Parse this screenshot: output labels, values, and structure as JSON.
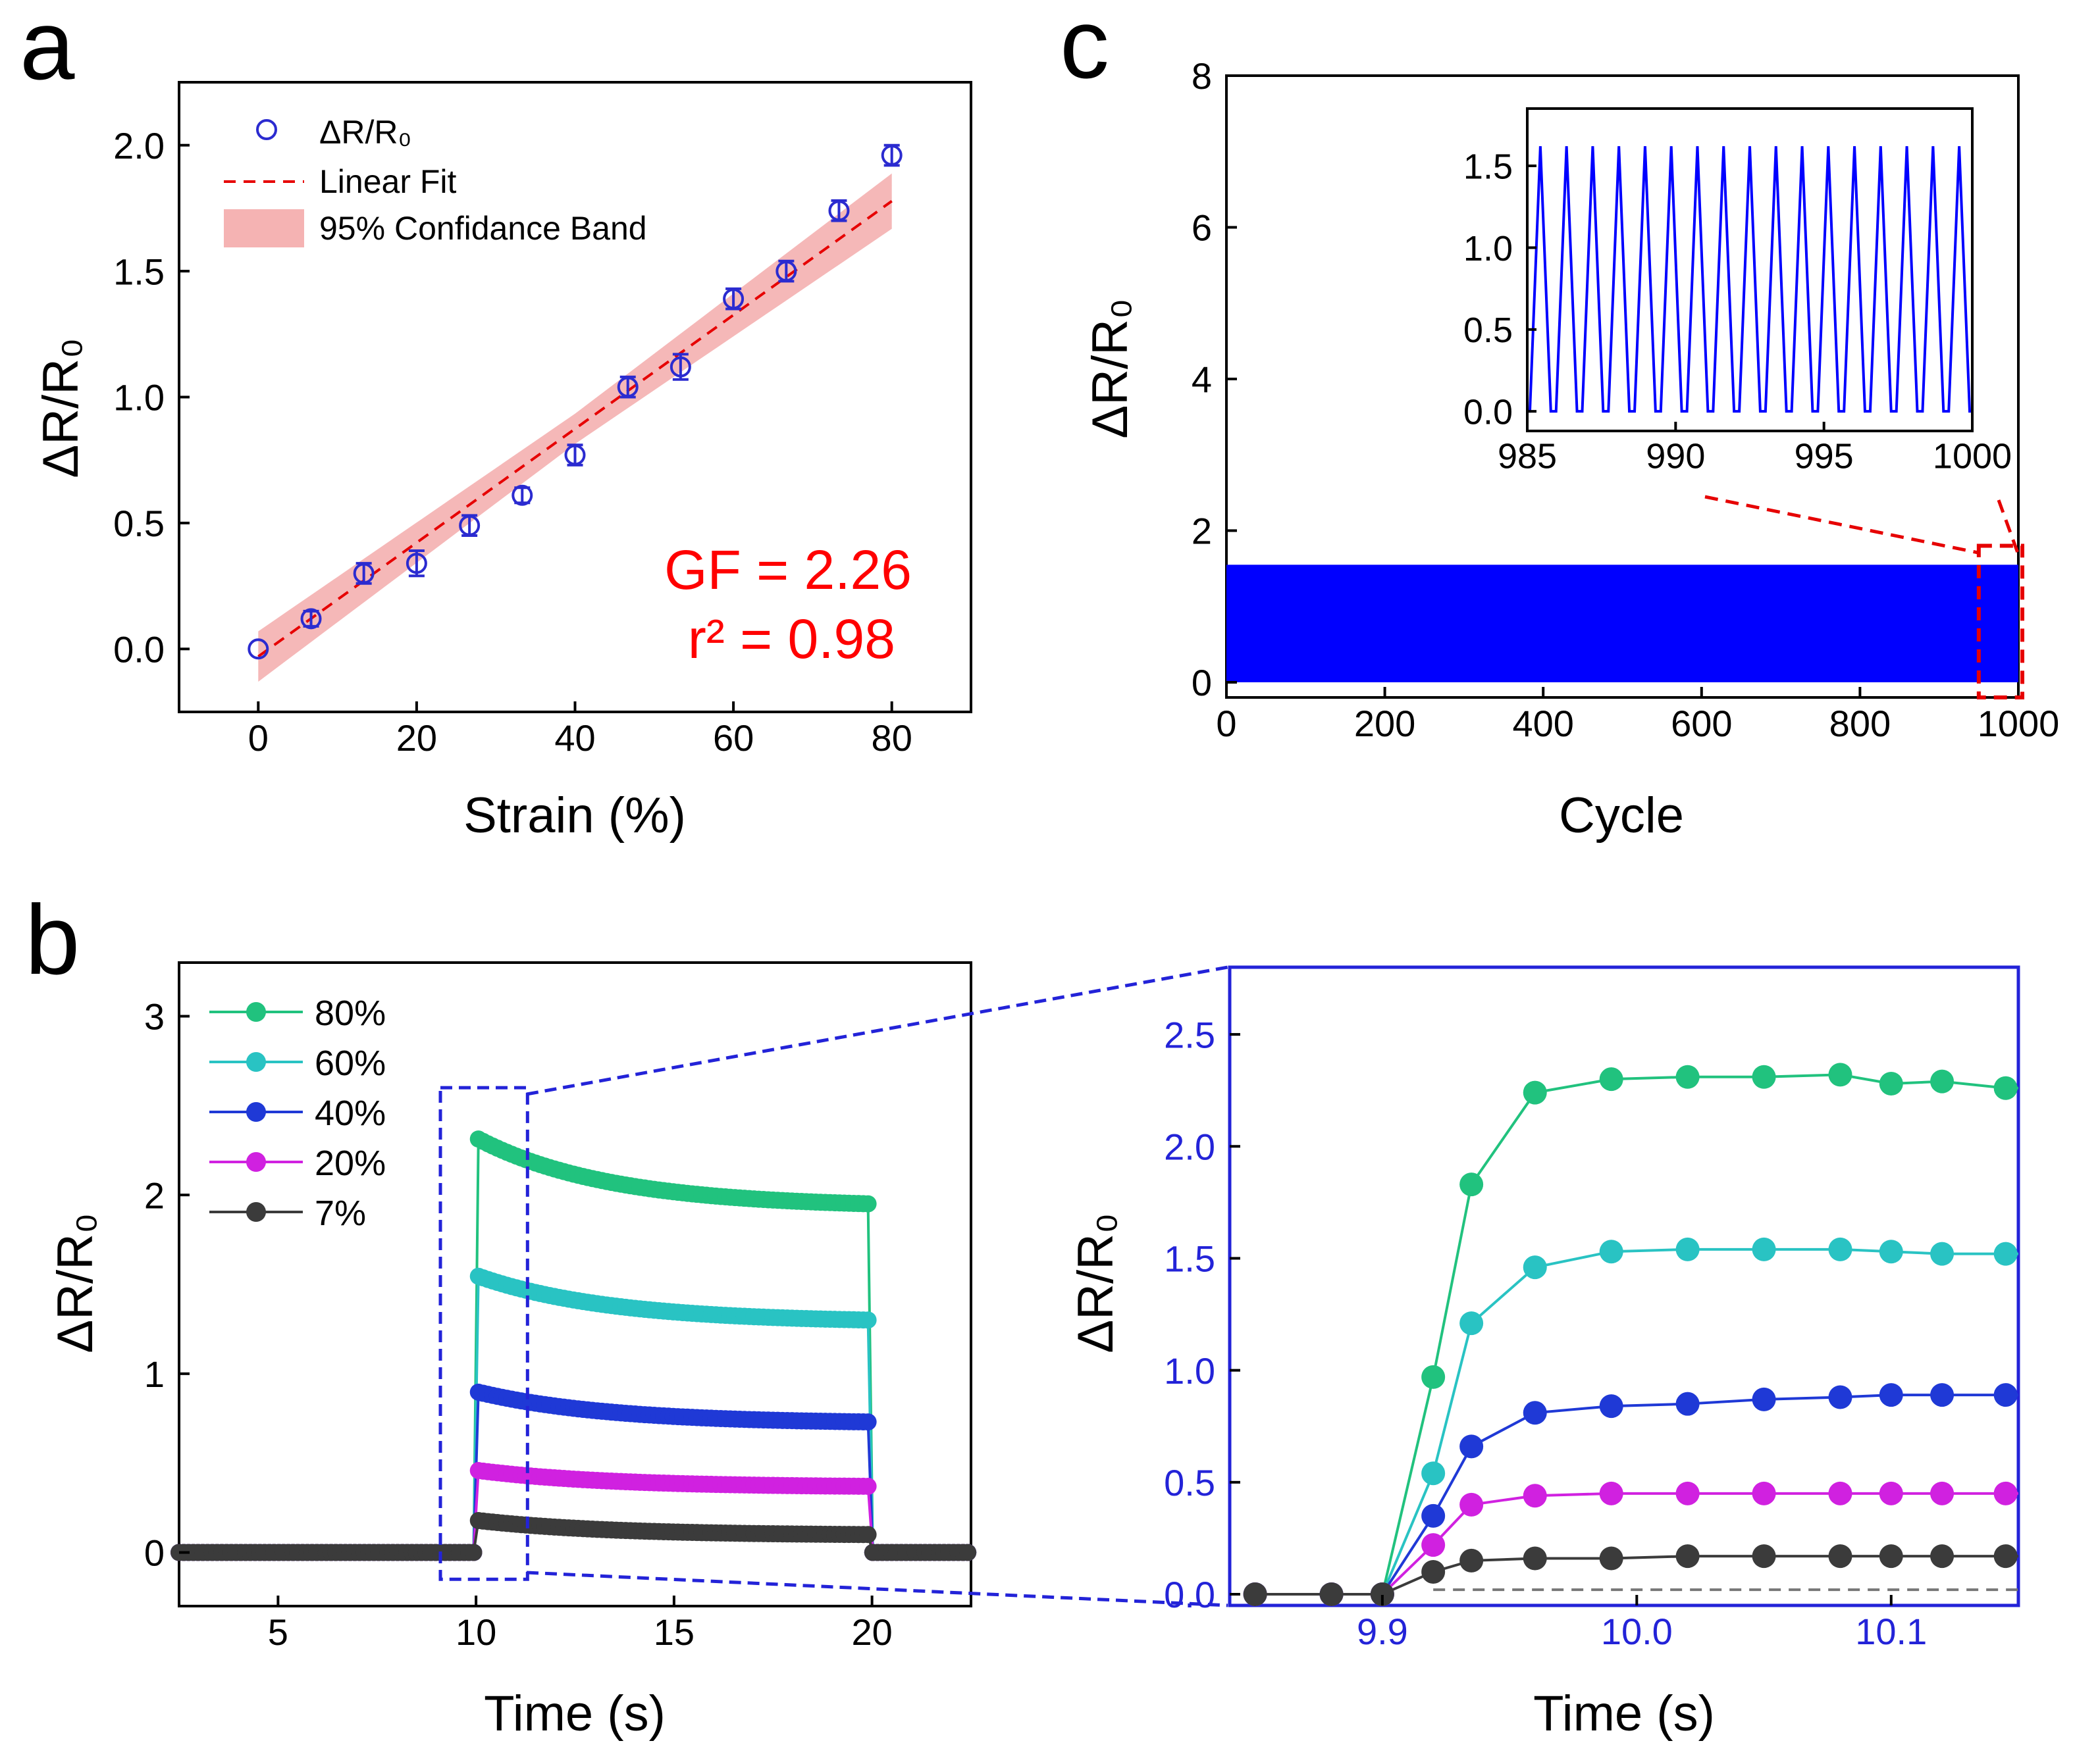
{
  "panel_labels": {
    "a": "a",
    "b": "b",
    "c": "c"
  },
  "colors": {
    "data_point": "#2b2bd0",
    "fit": "#e60000",
    "band": "#f2a0a0",
    "gf_text": "#ff0000",
    "cycle_line": "#0000ff",
    "zoom_frame": "#2323d8",
    "s80": "#21c27e",
    "s60": "#29c3c3",
    "s40": "#1f39d6",
    "s20": "#d021e0",
    "s7": "#3b3b3b"
  },
  "chart_data": [
    {
      "id": "a",
      "type": "scatter",
      "title": "",
      "xlabel": "Strain (%)",
      "ylabel": "ΔR/R₀",
      "xlim": [
        -10,
        90
      ],
      "ylim": [
        -0.25,
        2.25
      ],
      "xticks": [
        "0",
        "20",
        "40",
        "60",
        "80"
      ],
      "yticks": [
        "0.0",
        "0.5",
        "1.0",
        "1.5",
        "2.0"
      ],
      "legend": {
        "position": "top-left",
        "entries": [
          "ΔR/R₀",
          "Linear Fit",
          "95% Confidance Band"
        ]
      },
      "x": [
        0,
        6.67,
        13.33,
        20,
        26.67,
        33.33,
        40,
        46.67,
        53.33,
        60,
        66.67,
        73.33,
        80
      ],
      "y": [
        0.0,
        0.12,
        0.3,
        0.34,
        0.49,
        0.61,
        0.77,
        1.04,
        1.12,
        1.39,
        1.5,
        1.74,
        1.96
      ],
      "err": [
        0.0,
        0.03,
        0.04,
        0.05,
        0.04,
        0.03,
        0.04,
        0.04,
        0.05,
        0.04,
        0.04,
        0.04,
        0.04
      ],
      "fit": {
        "slope": 0.0226,
        "intercept": -0.03,
        "band_halfwidth": [
          0.1,
          0.06,
          0.11
        ]
      },
      "annotations": [
        "GF = 2.26",
        "r² = 0.98"
      ]
    },
    {
      "id": "b-left",
      "type": "line",
      "xlabel": "Time (s)",
      "ylabel": "ΔR/R₀",
      "xlim": [
        2.5,
        22.5
      ],
      "ylim": [
        -0.3,
        3.3
      ],
      "xticks": [
        "5",
        "10",
        "15",
        "20"
      ],
      "yticks": [
        "0",
        "1",
        "2",
        "3"
      ],
      "legend": {
        "position": "top-left"
      },
      "series": [
        {
          "name": "80%",
          "color_key": "s80",
          "plateau": [
            2.32,
            1.95
          ]
        },
        {
          "name": "60%",
          "color_key": "s60",
          "plateau": [
            1.55,
            1.3
          ]
        },
        {
          "name": "40%",
          "color_key": "s40",
          "plateau": [
            0.9,
            0.73
          ]
        },
        {
          "name": "20%",
          "color_key": "s20",
          "plateau": [
            0.46,
            0.37
          ]
        },
        {
          "name": "7%",
          "color_key": "s7",
          "plateau": [
            0.18,
            0.1
          ]
        }
      ],
      "load_on": 10.0,
      "load_off": 20.0,
      "zoom_box": {
        "x": [
          9.1,
          11.3
        ],
        "y": [
          -0.15,
          2.6
        ]
      }
    },
    {
      "id": "b-right",
      "type": "line",
      "xlabel": "Time (s)",
      "ylabel": "ΔR/R₀",
      "xlim": [
        9.84,
        10.15
      ],
      "ylim": [
        -0.05,
        2.8
      ],
      "xticks": [
        "9.9",
        "10.0",
        "10.1"
      ],
      "yticks": [
        "0.0",
        "0.5",
        "1.0",
        "1.5",
        "2.0",
        "2.5"
      ],
      "x": [
        9.85,
        9.88,
        9.9,
        9.92,
        9.935,
        9.96,
        9.99,
        10.02,
        10.05,
        10.08,
        10.1,
        10.12,
        10.145
      ],
      "series": [
        {
          "name": "80%",
          "color_key": "s80",
          "values": [
            0,
            0,
            0,
            0.97,
            1.83,
            2.24,
            2.3,
            2.31,
            2.31,
            2.32,
            2.28,
            2.29,
            2.26
          ]
        },
        {
          "name": "60%",
          "color_key": "s60",
          "values": [
            0,
            0,
            0,
            0.54,
            1.21,
            1.46,
            1.53,
            1.54,
            1.54,
            1.54,
            1.53,
            1.52,
            1.52
          ]
        },
        {
          "name": "40%",
          "color_key": "s40",
          "values": [
            0,
            0,
            0,
            0.35,
            0.66,
            0.81,
            0.84,
            0.85,
            0.87,
            0.88,
            0.89,
            0.89,
            0.89
          ]
        },
        {
          "name": "20%",
          "color_key": "s20",
          "values": [
            0,
            0,
            0,
            0.22,
            0.4,
            0.44,
            0.45,
            0.45,
            0.45,
            0.45,
            0.45,
            0.45,
            0.45
          ]
        },
        {
          "name": "7%",
          "color_key": "s7",
          "values": [
            0,
            0,
            0,
            0.1,
            0.15,
            0.16,
            0.16,
            0.17,
            0.17,
            0.17,
            0.17,
            0.17,
            0.17
          ]
        }
      ]
    },
    {
      "id": "c",
      "type": "line",
      "xlabel": "Cycle",
      "ylabel": "ΔR/R₀",
      "xlim": [
        0,
        1000
      ],
      "ylim": [
        -0.2,
        8
      ],
      "xticks": [
        "0",
        "200",
        "400",
        "600",
        "800",
        "1000"
      ],
      "yticks": [
        "0",
        "2",
        "4",
        "6",
        "8"
      ],
      "band": {
        "min": 0.0,
        "max": 1.55
      },
      "zoom_box": {
        "x": [
          950,
          1005
        ],
        "y": [
          -0.2,
          1.8
        ]
      },
      "inset": {
        "xlim": [
          985,
          1000
        ],
        "ylim": [
          -0.12,
          1.85
        ],
        "xticks": [
          "985",
          "990",
          "995",
          "1000"
        ],
        "yticks": [
          "0.0",
          "0.5",
          "1.0",
          "1.5"
        ],
        "cycles": 17,
        "min": 0.0,
        "max": 1.62
      }
    }
  ]
}
